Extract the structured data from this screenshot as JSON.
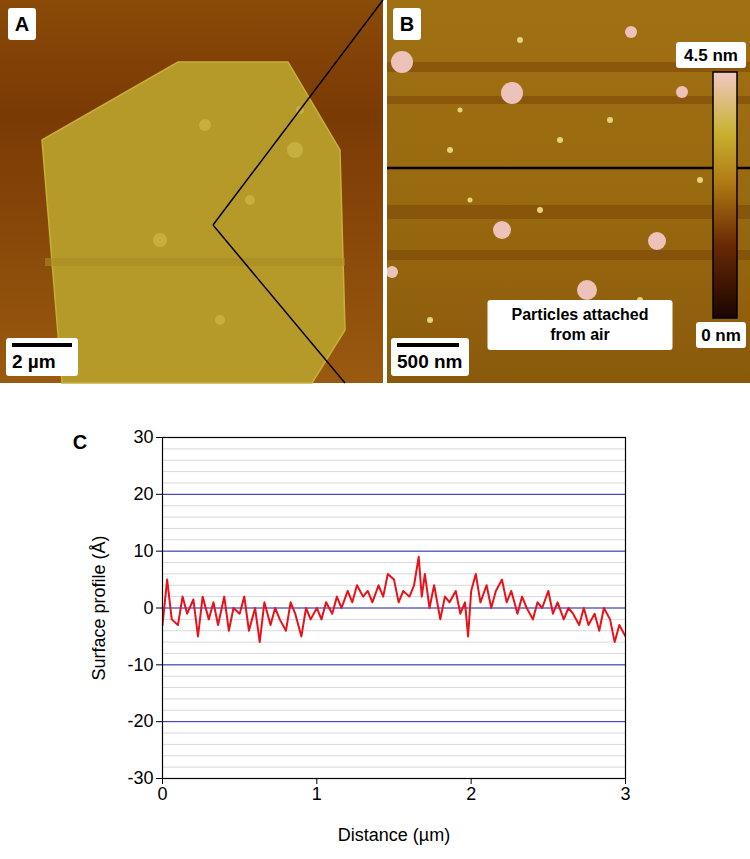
{
  "panels": [
    {
      "letter": "A",
      "scale_bar": "2 µm"
    },
    {
      "letter": "B",
      "scale_bar": "500 nm",
      "annotation": "Particles attached from air",
      "color_bar": {
        "range": [
          0,
          4.5
        ],
        "ticks": [
          {
            "value": 4.5,
            "label": "4.5 nm"
          },
          {
            "value": 0,
            "label": "0 nm"
          }
        ]
      }
    }
  ],
  "chart_data": {
    "type": "line",
    "panel_label": "C",
    "xlabel": "Distance (µm)",
    "ylabel": "Surface profile (Å)",
    "x": [
      0,
      0.03,
      0.06,
      0.1,
      0.13,
      0.16,
      0.2,
      0.23,
      0.26,
      0.3,
      0.33,
      0.36,
      0.4,
      0.43,
      0.46,
      0.5,
      0.53,
      0.56,
      0.6,
      0.63,
      0.66,
      0.7,
      0.73,
      0.76,
      0.8,
      0.83,
      0.86,
      0.9,
      0.93,
      0.96,
      1.0,
      1.03,
      1.06,
      1.1,
      1.13,
      1.16,
      1.2,
      1.23,
      1.26,
      1.3,
      1.33,
      1.36,
      1.4,
      1.43,
      1.46,
      1.5,
      1.53,
      1.56,
      1.6,
      1.63,
      1.66,
      1.68,
      1.7,
      1.73,
      1.76,
      1.8,
      1.83,
      1.86,
      1.9,
      1.93,
      1.96,
      1.98,
      2.0,
      2.03,
      2.06,
      2.1,
      2.13,
      2.16,
      2.2,
      2.23,
      2.26,
      2.3,
      2.33,
      2.36,
      2.4,
      2.43,
      2.46,
      2.5,
      2.53,
      2.56,
      2.6,
      2.63,
      2.66,
      2.7,
      2.73,
      2.76,
      2.8,
      2.83,
      2.86,
      2.9,
      2.93,
      2.96,
      3.0
    ],
    "values": [
      -3,
      5,
      -2,
      -3,
      2,
      -1,
      1.5,
      -5,
      2,
      -2,
      1,
      -3,
      2,
      -4,
      0,
      -1,
      2,
      -4,
      0,
      -6,
      1,
      -3,
      0,
      -2,
      -4,
      1,
      -1,
      -5,
      0,
      -2,
      0,
      -2,
      1,
      -1,
      2,
      0,
      3,
      1,
      4,
      2,
      3,
      1,
      4,
      2,
      6,
      5,
      1,
      3,
      2,
      4,
      9,
      2,
      6,
      0,
      4,
      -2,
      2,
      1,
      3,
      -1,
      1,
      -5,
      3,
      6,
      1,
      4,
      0,
      3,
      5,
      1,
      3,
      -1,
      2,
      0,
      -2,
      1,
      0,
      3,
      -1,
      1,
      -2,
      0,
      -1,
      -3,
      0,
      -3,
      -1,
      -4,
      0,
      -2,
      -6,
      -3,
      -5
    ],
    "color": "#e8121a",
    "line_style": "solid",
    "xlim": [
      0,
      3
    ],
    "xticks": [
      0,
      1,
      2,
      3
    ],
    "ylim": [
      -30,
      30
    ],
    "yticks": [
      -30,
      -20,
      -10,
      0,
      10,
      20,
      30
    ],
    "grid": true
  }
}
